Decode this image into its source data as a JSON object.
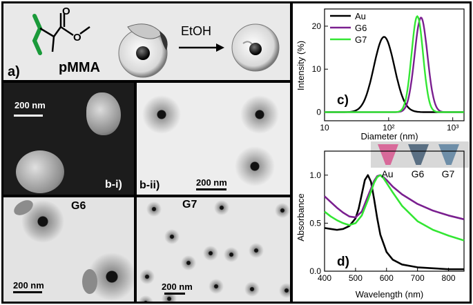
{
  "panel_a": {
    "label": "a)",
    "polymer_name": "pMMA",
    "arrow_label": "EtOH"
  },
  "panel_b1": {
    "label": "b-i)",
    "scale": "200 nm"
  },
  "panel_b2": {
    "label": "b-ii)",
    "scale": "200 nm"
  },
  "panel_g6": {
    "label": "G6",
    "scale": "200 nm"
  },
  "panel_g7": {
    "label": "G7",
    "scale": "200 nm"
  },
  "panel_c": {
    "label": "c)"
  },
  "panel_d": {
    "label": "d)",
    "vial_labels": [
      "Au",
      "G6",
      "G7"
    ],
    "vial_colors": [
      "#d86a9a",
      "#5a6f83",
      "#6e8ea8"
    ]
  },
  "colors": {
    "Au": "#000000",
    "G6": "#7a1f8f",
    "G7": "#33e633"
  },
  "chart_data": [
    {
      "type": "line",
      "xlabel": "Diameter (nm)",
      "ylabel": "Intensity (%)",
      "xscale": "log",
      "xlim": [
        10,
        1500
      ],
      "ylim": [
        -2,
        24
      ],
      "xtick_labels": [
        "10",
        "10²",
        "10³"
      ],
      "ytick_labels": [
        "0",
        "10",
        "20"
      ],
      "legend": "top-left",
      "series": [
        {
          "name": "Au",
          "peak_x": 85,
          "peak_y": 17.5,
          "log_width": 0.16
        },
        {
          "name": "G6",
          "peak_x": 320,
          "peak_y": 22,
          "log_width": 0.1
        },
        {
          "name": "G7",
          "peak_x": 280,
          "peak_y": 22.3,
          "log_width": 0.09
        }
      ]
    },
    {
      "type": "line",
      "xlabel": "Wavelength (nm)",
      "ylabel": "Absorbance",
      "xlim": [
        400,
        850
      ],
      "ylim": [
        0,
        1.25
      ],
      "xtick_labels": [
        "400",
        "500",
        "600",
        "700",
        "800"
      ],
      "ytick_labels": [
        "0.0",
        "0.5",
        "1.0"
      ],
      "series": [
        {
          "name": "Au",
          "x": [
            400,
            420,
            440,
            460,
            480,
            500,
            510,
            520,
            530,
            540,
            550,
            560,
            570,
            580,
            600,
            620,
            650,
            700,
            750,
            800,
            850
          ],
          "y": [
            0.45,
            0.44,
            0.43,
            0.44,
            0.47,
            0.55,
            0.65,
            0.8,
            0.95,
            1.0,
            0.93,
            0.75,
            0.55,
            0.38,
            0.2,
            0.12,
            0.07,
            0.04,
            0.03,
            0.02,
            0.02
          ]
        },
        {
          "name": "G6",
          "x": [
            400,
            420,
            440,
            460,
            480,
            500,
            520,
            540,
            560,
            570,
            580,
            590,
            600,
            620,
            650,
            700,
            750,
            800,
            850
          ],
          "y": [
            0.78,
            0.72,
            0.66,
            0.61,
            0.57,
            0.56,
            0.62,
            0.78,
            0.94,
            0.99,
            1.0,
            0.98,
            0.95,
            0.88,
            0.8,
            0.7,
            0.63,
            0.58,
            0.54
          ]
        },
        {
          "name": "G7",
          "x": [
            400,
            420,
            440,
            460,
            480,
            500,
            520,
            540,
            560,
            570,
            580,
            590,
            600,
            620,
            650,
            700,
            750,
            800,
            850
          ],
          "y": [
            0.62,
            0.57,
            0.53,
            0.5,
            0.48,
            0.5,
            0.58,
            0.74,
            0.92,
            0.98,
            1.0,
            0.97,
            0.92,
            0.82,
            0.68,
            0.52,
            0.43,
            0.37,
            0.32
          ]
        }
      ]
    }
  ]
}
